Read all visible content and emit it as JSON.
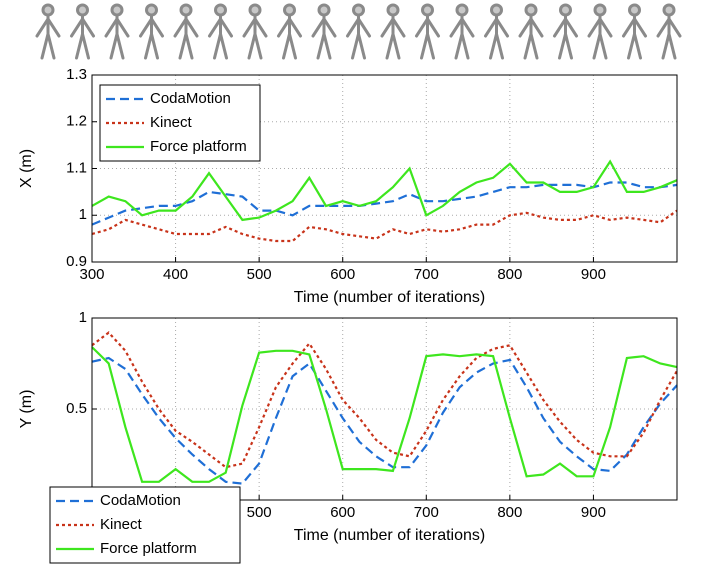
{
  "chart_data": [
    {
      "type": "line",
      "xlabel": "Time (number of iterations)",
      "ylabel": "X (m)",
      "x": [
        300,
        320,
        340,
        360,
        380,
        400,
        420,
        440,
        460,
        480,
        500,
        520,
        540,
        560,
        580,
        600,
        620,
        640,
        660,
        680,
        700,
        720,
        740,
        760,
        780,
        800,
        820,
        840,
        860,
        880,
        900,
        920,
        940,
        960,
        980,
        1000
      ],
      "xlim": [
        300,
        1000
      ],
      "xticks": [
        300,
        400,
        500,
        600,
        700,
        800,
        900
      ],
      "ylim": [
        0.9,
        1.3
      ],
      "yticks": [
        0.9,
        1,
        1.1,
        1.2,
        1.3
      ],
      "grid": true,
      "legend": "upper left",
      "series": [
        {
          "name": "CodaMotion",
          "color": "#1f6fd6",
          "values": [
            0.98,
            0.995,
            1.01,
            1.015,
            1.02,
            1.02,
            1.03,
            1.05,
            1.045,
            1.04,
            1.01,
            1.01,
            1.0,
            1.02,
            1.02,
            1.02,
            1.02,
            1.025,
            1.03,
            1.045,
            1.03,
            1.03,
            1.035,
            1.04,
            1.05,
            1.06,
            1.06,
            1.065,
            1.065,
            1.065,
            1.06,
            1.07,
            1.07,
            1.06,
            1.06,
            1.065
          ]
        },
        {
          "name": "Kinect",
          "color": "#c8331a",
          "values": [
            0.96,
            0.97,
            0.99,
            0.98,
            0.97,
            0.96,
            0.96,
            0.96,
            0.975,
            0.96,
            0.95,
            0.945,
            0.945,
            0.975,
            0.97,
            0.96,
            0.955,
            0.95,
            0.97,
            0.96,
            0.97,
            0.965,
            0.97,
            0.98,
            0.98,
            1.0,
            1.005,
            0.995,
            0.99,
            0.99,
            1.0,
            0.99,
            0.995,
            0.99,
            0.985,
            1.01
          ]
        },
        {
          "name": "Force platform",
          "color": "#3ee61e",
          "values": [
            1.02,
            1.04,
            1.03,
            1.0,
            1.01,
            1.01,
            1.04,
            1.09,
            1.04,
            0.99,
            0.995,
            1.01,
            1.03,
            1.08,
            1.02,
            1.03,
            1.02,
            1.03,
            1.06,
            1.1,
            1.0,
            1.02,
            1.05,
            1.07,
            1.08,
            1.11,
            1.07,
            1.07,
            1.05,
            1.05,
            1.06,
            1.115,
            1.05,
            1.05,
            1.06,
            1.075
          ]
        }
      ]
    },
    {
      "type": "line",
      "xlabel": "Time (number of iterations)",
      "ylabel": "Y (m)",
      "x": [
        300,
        320,
        340,
        360,
        380,
        400,
        420,
        440,
        460,
        480,
        500,
        520,
        540,
        560,
        580,
        600,
        620,
        640,
        660,
        680,
        700,
        720,
        740,
        760,
        780,
        800,
        820,
        840,
        860,
        880,
        900,
        920,
        940,
        960,
        980,
        1000
      ],
      "xlim": [
        300,
        1000
      ],
      "xticks": [
        300,
        400,
        500,
        600,
        700,
        800,
        900
      ],
      "ylim": [
        0,
        1
      ],
      "yticks": [
        0,
        0.5,
        1
      ],
      "grid": true,
      "legend": "lower left",
      "series": [
        {
          "name": "CodaMotion",
          "color": "#1f6fd6",
          "values": [
            0.76,
            0.78,
            0.72,
            0.58,
            0.45,
            0.34,
            0.25,
            0.17,
            0.1,
            0.09,
            0.2,
            0.45,
            0.68,
            0.75,
            0.6,
            0.45,
            0.32,
            0.24,
            0.18,
            0.18,
            0.3,
            0.48,
            0.62,
            0.7,
            0.75,
            0.77,
            0.62,
            0.45,
            0.32,
            0.24,
            0.17,
            0.16,
            0.25,
            0.4,
            0.53,
            0.63
          ]
        },
        {
          "name": "Kinect",
          "color": "#c8331a",
          "values": [
            0.85,
            0.92,
            0.82,
            0.65,
            0.5,
            0.38,
            0.32,
            0.25,
            0.18,
            0.2,
            0.4,
            0.62,
            0.75,
            0.86,
            0.72,
            0.55,
            0.45,
            0.33,
            0.26,
            0.24,
            0.38,
            0.55,
            0.68,
            0.78,
            0.83,
            0.85,
            0.7,
            0.55,
            0.43,
            0.33,
            0.26,
            0.24,
            0.24,
            0.37,
            0.55,
            0.71
          ]
        },
        {
          "name": "Force platform",
          "color": "#3ee61e",
          "values": [
            0.84,
            0.75,
            0.4,
            0.1,
            0.1,
            0.17,
            0.1,
            0.1,
            0.15,
            0.52,
            0.81,
            0.82,
            0.82,
            0.8,
            0.5,
            0.17,
            0.17,
            0.17,
            0.16,
            0.45,
            0.79,
            0.8,
            0.79,
            0.8,
            0.79,
            0.45,
            0.13,
            0.14,
            0.2,
            0.13,
            0.13,
            0.4,
            0.78,
            0.79,
            0.75,
            0.73
          ]
        }
      ]
    }
  ]
}
